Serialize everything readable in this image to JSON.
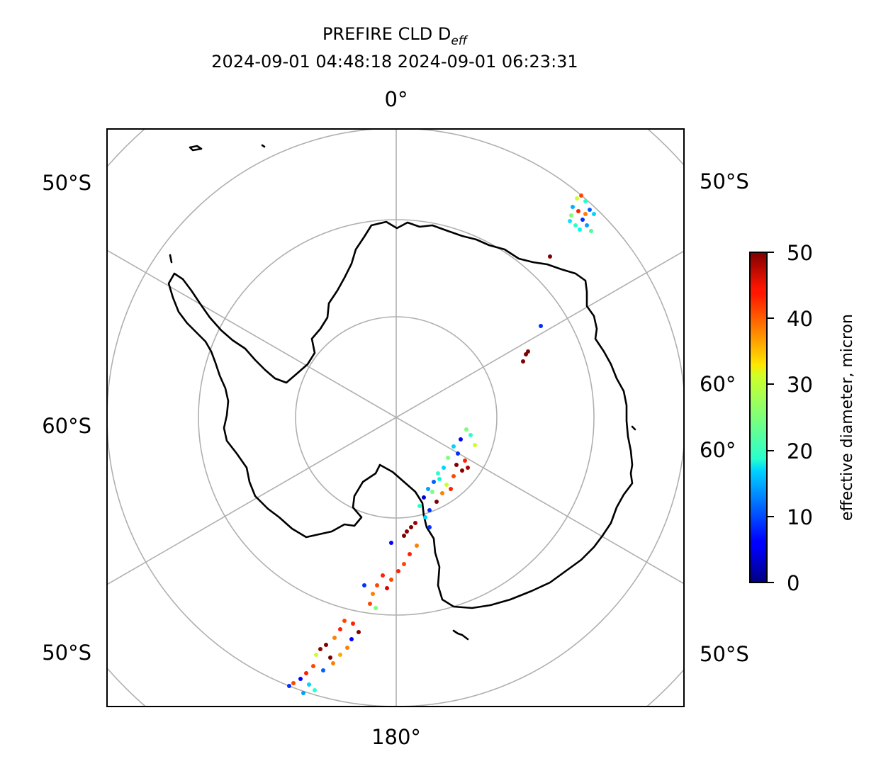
{
  "title": {
    "line1_prefix": "PREFIRE CLD D",
    "line1_subscript": "eff",
    "line2": "2024-09-01 04:48:18 2024-09-01 06:23:31"
  },
  "map": {
    "projection": "south-polar-stereographic",
    "labels": {
      "top": "0°",
      "bottom": "180°",
      "left_upper": "50°S",
      "left_middle": "60°S",
      "left_lower": "50°S",
      "right_upper": "50°S",
      "right_mid1": "60°",
      "right_mid2": "60°",
      "right_lower": "50°S"
    }
  },
  "colorbar": {
    "label": "effective diameter, micron",
    "colormap": "jet",
    "range": [
      0,
      50
    ],
    "ticks": [
      "0",
      "10",
      "20",
      "30",
      "40",
      "50"
    ]
  },
  "colors": {
    "coastline": "#000000",
    "gridline": "#b0b0b0"
  }
}
